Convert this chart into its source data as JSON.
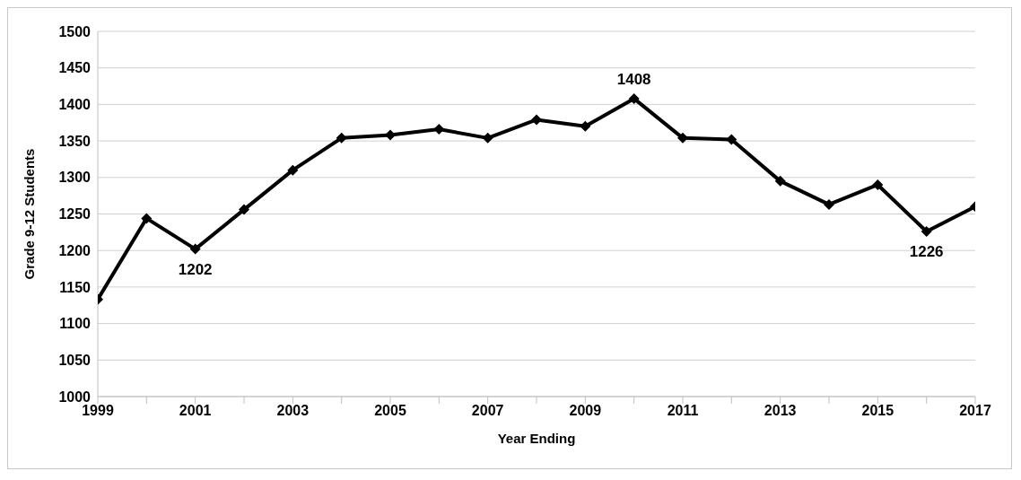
{
  "chart_data": {
    "type": "line",
    "xlabel": "Year Ending",
    "ylabel": "Grade 9-12 Students",
    "x": [
      1999,
      2000,
      2001,
      2002,
      2003,
      2004,
      2005,
      2006,
      2007,
      2008,
      2009,
      2010,
      2011,
      2012,
      2013,
      2014,
      2015,
      2016,
      2017
    ],
    "series": [
      {
        "color": "#000000",
        "values": [
          1133,
          1244,
          1202,
          1256,
          1310,
          1354,
          1358,
          1366,
          1354,
          1379,
          1370,
          1408,
          1354,
          1352,
          1295,
          1263,
          1290,
          1226,
          1260
        ]
      }
    ],
    "xlim": [
      1999,
      2017
    ],
    "xticks": [
      1999,
      {
        "value": 2000,
        "label": null
      },
      2001,
      {
        "value": 2002,
        "label": null
      },
      2003,
      {
        "value": 2004,
        "label": null
      },
      2005,
      {
        "value": 2006,
        "label": null
      },
      2007,
      {
        "value": 2008,
        "label": null
      },
      2009,
      {
        "value": 2010,
        "label": null
      },
      2011,
      {
        "value": 2012,
        "label": null
      },
      2013,
      {
        "value": 2014,
        "label": null
      },
      2015,
      {
        "value": 2016,
        "label": null
      },
      2017
    ],
    "ylim": [
      1000,
      1500
    ],
    "yticks": [
      1000,
      1050,
      1100,
      1150,
      1200,
      1250,
      1300,
      1350,
      1400,
      1450,
      1500
    ],
    "annotations": [
      {
        "text": "1202",
        "x": 2001,
        "y": 1202
      },
      {
        "text": "1408",
        "x": 2010,
        "y": 1408
      },
      {
        "text": "1226",
        "x": 2016,
        "y": 1226
      }
    ],
    "grid": "y",
    "marker": "diamond",
    "line_style": "solid",
    "legend": false
  }
}
